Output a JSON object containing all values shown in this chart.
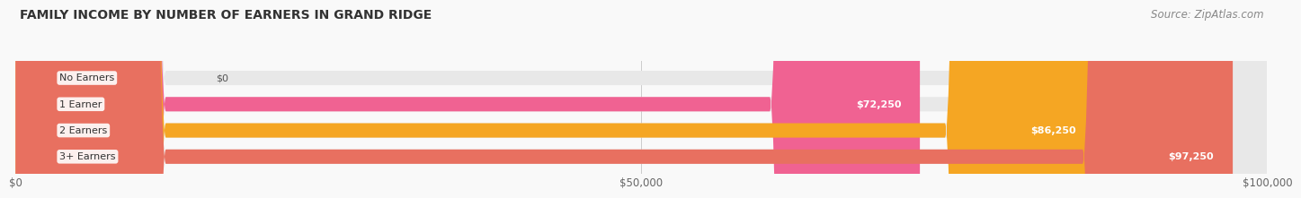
{
  "title": "FAMILY INCOME BY NUMBER OF EARNERS IN GRAND RIDGE",
  "source": "Source: ZipAtlas.com",
  "categories": [
    "No Earners",
    "1 Earner",
    "2 Earners",
    "3+ Earners"
  ],
  "values": [
    0,
    72250,
    86250,
    97250
  ],
  "bar_colors": [
    "#9b9fd4",
    "#f06292",
    "#f5a623",
    "#e87060"
  ],
  "bar_bg_color": "#e8e8e8",
  "value_labels": [
    "$0",
    "$72,250",
    "$86,250",
    "$97,250"
  ],
  "xlim": [
    0,
    100000
  ],
  "xticks": [
    0,
    50000,
    100000
  ],
  "xtick_labels": [
    "$0",
    "$50,000",
    "$100,000"
  ],
  "title_fontsize": 10,
  "source_fontsize": 8.5,
  "bar_height": 0.55,
  "background_color": "#f9f9f9"
}
